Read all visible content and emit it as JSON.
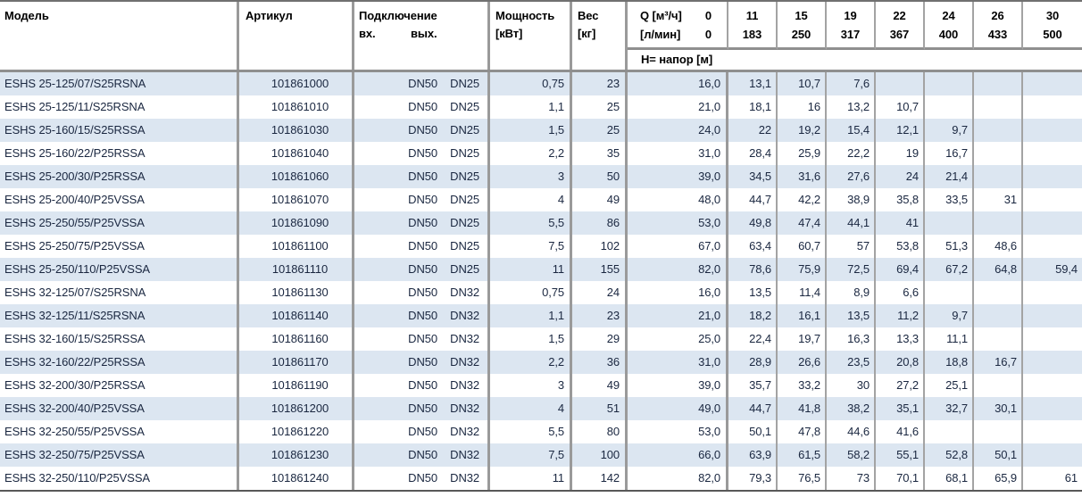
{
  "table": {
    "headers": {
      "model": "Модель",
      "article": "Артикул",
      "connection": "Подключение",
      "conn_in": "вх.",
      "conn_out": "вых.",
      "power_line1": "Мощность",
      "power_line2": "[кВт]",
      "weight_line1": "Вес",
      "weight_line2": "[кг]",
      "q_line1_label": "Q [м³/ч]",
      "q_line1_zero": "0",
      "q_line2_label": "[л/мин]",
      "q_line2_zero": "0",
      "head_row_label": "Н= напор [м]"
    },
    "q_columns": [
      {
        "m3h": "11",
        "lmin": "183"
      },
      {
        "m3h": "15",
        "lmin": "250"
      },
      {
        "m3h": "19",
        "lmin": "317"
      },
      {
        "m3h": "22",
        "lmin": "367"
      },
      {
        "m3h": "24",
        "lmin": "400"
      },
      {
        "m3h": "26",
        "lmin": "433"
      },
      {
        "m3h": "30",
        "lmin": "500"
      }
    ],
    "rows": [
      {
        "model": "ESHS 25-125/07/S25RSNA",
        "article": "101861000",
        "conn_in": "DN50",
        "conn_out": "DN25",
        "power": "0,75",
        "weight": "23",
        "heads": [
          "16,0",
          "13,1",
          "10,7",
          "7,6",
          "",
          "",
          "",
          ""
        ]
      },
      {
        "model": "ESHS 25-125/11/S25RSNA",
        "article": "101861010",
        "conn_in": "DN50",
        "conn_out": "DN25",
        "power": "1,1",
        "weight": "25",
        "heads": [
          "21,0",
          "18,1",
          "16",
          "13,2",
          "10,7",
          "",
          "",
          ""
        ]
      },
      {
        "model": "ESHS 25-160/15/S25RSSA",
        "article": "101861030",
        "conn_in": "DN50",
        "conn_out": "DN25",
        "power": "1,5",
        "weight": "25",
        "heads": [
          "24,0",
          "22",
          "19,2",
          "15,4",
          "12,1",
          "9,7",
          "",
          ""
        ]
      },
      {
        "model": "ESHS 25-160/22/P25RSSA",
        "article": "101861040",
        "conn_in": "DN50",
        "conn_out": "DN25",
        "power": "2,2",
        "weight": "35",
        "heads": [
          "31,0",
          "28,4",
          "25,9",
          "22,2",
          "19",
          "16,7",
          "",
          ""
        ]
      },
      {
        "model": "ESHS 25-200/30/P25RSSA",
        "article": "101861060",
        "conn_in": "DN50",
        "conn_out": "DN25",
        "power": "3",
        "weight": "50",
        "heads": [
          "39,0",
          "34,5",
          "31,6",
          "27,6",
          "24",
          "21,4",
          "",
          ""
        ]
      },
      {
        "model": "ESHS 25-200/40/P25VSSA",
        "article": "101861070",
        "conn_in": "DN50",
        "conn_out": "DN25",
        "power": "4",
        "weight": "49",
        "heads": [
          "48,0",
          "44,7",
          "42,2",
          "38,9",
          "35,8",
          "33,5",
          "31",
          ""
        ]
      },
      {
        "model": "ESHS 25-250/55/P25VSSA",
        "article": "101861090",
        "conn_in": "DN50",
        "conn_out": "DN25",
        "power": "5,5",
        "weight": "86",
        "heads": [
          "53,0",
          "49,8",
          "47,4",
          "44,1",
          "41",
          "",
          "",
          ""
        ]
      },
      {
        "model": "ESHS 25-250/75/P25VSSA",
        "article": "101861100",
        "conn_in": "DN50",
        "conn_out": "DN25",
        "power": "7,5",
        "weight": "102",
        "heads": [
          "67,0",
          "63,4",
          "60,7",
          "57",
          "53,8",
          "51,3",
          "48,6",
          ""
        ]
      },
      {
        "model": "ESHS 25-250/110/P25VSSA",
        "article": "101861110",
        "conn_in": "DN50",
        "conn_out": "DN25",
        "power": "11",
        "weight": "155",
        "heads": [
          "82,0",
          "78,6",
          "75,9",
          "72,5",
          "69,4",
          "67,2",
          "64,8",
          "59,4"
        ]
      },
      {
        "model": "ESHS 32-125/07/S25RSNA",
        "article": "101861130",
        "conn_in": "DN50",
        "conn_out": "DN32",
        "power": "0,75",
        "weight": "24",
        "heads": [
          "16,0",
          "13,5",
          "11,4",
          "8,9",
          "6,6",
          "",
          "",
          ""
        ]
      },
      {
        "model": "ESHS 32-125/11/S25RSNA",
        "article": "101861140",
        "conn_in": "DN50",
        "conn_out": "DN32",
        "power": "1,1",
        "weight": "23",
        "heads": [
          "21,0",
          "18,2",
          "16,1",
          "13,5",
          "11,2",
          "9,7",
          "",
          ""
        ]
      },
      {
        "model": "ESHS 32-160/15/S25RSSA",
        "article": "101861160",
        "conn_in": "DN50",
        "conn_out": "DN32",
        "power": "1,5",
        "weight": "29",
        "heads": [
          "25,0",
          "22,4",
          "19,7",
          "16,3",
          "13,3",
          "11,1",
          "",
          ""
        ]
      },
      {
        "model": "ESHS 32-160/22/P25RSSA",
        "article": "101861170",
        "conn_in": "DN50",
        "conn_out": "DN32",
        "power": "2,2",
        "weight": "36",
        "heads": [
          "31,0",
          "28,9",
          "26,6",
          "23,5",
          "20,8",
          "18,8",
          "16,7",
          ""
        ]
      },
      {
        "model": "ESHS 32-200/30/P25RSSA",
        "article": "101861190",
        "conn_in": "DN50",
        "conn_out": "DN32",
        "power": "3",
        "weight": "49",
        "heads": [
          "39,0",
          "35,7",
          "33,2",
          "30",
          "27,2",
          "25,1",
          "",
          ""
        ]
      },
      {
        "model": "ESHS 32-200/40/P25VSSA",
        "article": "101861200",
        "conn_in": "DN50",
        "conn_out": "DN32",
        "power": "4",
        "weight": "51",
        "heads": [
          "49,0",
          "44,7",
          "41,8",
          "38,2",
          "35,1",
          "32,7",
          "30,1",
          ""
        ]
      },
      {
        "model": "ESHS 32-250/55/P25VSSA",
        "article": "101861220",
        "conn_in": "DN50",
        "conn_out": "DN32",
        "power": "5,5",
        "weight": "80",
        "heads": [
          "53,0",
          "50,1",
          "47,8",
          "44,6",
          "41,6",
          "",
          "",
          ""
        ]
      },
      {
        "model": "ESHS 32-250/75/P25VSSA",
        "article": "101861230",
        "conn_in": "DN50",
        "conn_out": "DN32",
        "power": "7,5",
        "weight": "100",
        "heads": [
          "66,0",
          "63,9",
          "61,5",
          "58,2",
          "55,1",
          "52,8",
          "50,1",
          ""
        ]
      },
      {
        "model": "ESHS 32-250/110/P25VSSA",
        "article": "101861240",
        "conn_in": "DN50",
        "conn_out": "DN32",
        "power": "11",
        "weight": "142",
        "heads": [
          "82,0",
          "79,3",
          "76,5",
          "73",
          "70,1",
          "68,1",
          "65,9",
          "61"
        ]
      }
    ],
    "colors": {
      "stripe": "#dce6f1",
      "border_major": "#9a9a9a",
      "border_minor": "#a3a3a3",
      "text": "#1a2740",
      "header_text": "#000000"
    }
  }
}
